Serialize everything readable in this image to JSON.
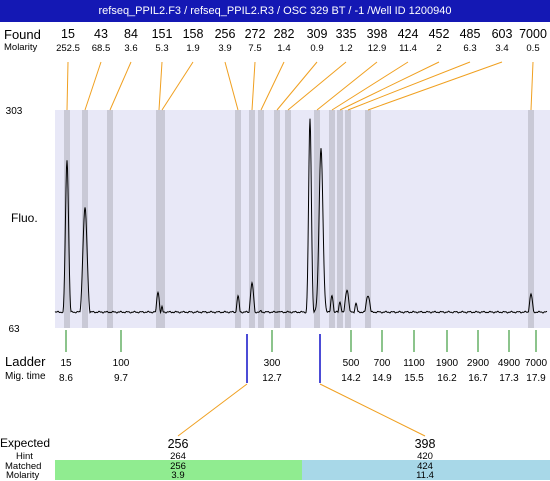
{
  "header": {
    "title": "refseq_PPIL2.F3 / refseq_PPIL2.R3 / OSC 329 BT  / -1 /Well ID 1200940"
  },
  "labels": {
    "found": "Found",
    "molarity": "Molarity",
    "fluo": "Fluo.",
    "ladder": "Ladder",
    "mig_time": "Mig. time",
    "expected": "Expected",
    "hint": "Hint",
    "matched": "Matched",
    "molarity_bottom": "Molarity"
  },
  "colors": {
    "title_bar": "#1418b4",
    "plot_background": "#e8e8f7",
    "band": "#c9c9d6",
    "leader_line": "#f0a020",
    "ladder_tick": "#1a8a1a",
    "marker": "#1010c8",
    "matched_green": "#90ec90",
    "matched_blue": "#a8d8e8",
    "trace": "#000000"
  },
  "chart_data": {
    "type": "line",
    "y_axis": {
      "min": 63,
      "max": 303,
      "label": "Fluo."
    },
    "found_peaks": [
      {
        "size": "15",
        "molarity": "252.5"
      },
      {
        "size": "43",
        "molarity": "68.5"
      },
      {
        "size": "84",
        "molarity": "3.6"
      },
      {
        "size": "151",
        "molarity": "5.3"
      },
      {
        "size": "158",
        "molarity": "1.9"
      },
      {
        "size": "256",
        "molarity": "3.9"
      },
      {
        "size": "272",
        "molarity": "7.5"
      },
      {
        "size": "282",
        "molarity": "1.4"
      },
      {
        "size": "309",
        "molarity": "0.9"
      },
      {
        "size": "335",
        "molarity": "1.2"
      },
      {
        "size": "398",
        "molarity": "12.9"
      },
      {
        "size": "424",
        "molarity": "11.4"
      },
      {
        "size": "452",
        "molarity": "2"
      },
      {
        "size": "485",
        "molarity": "6.3"
      },
      {
        "size": "603",
        "molarity": "3.4"
      },
      {
        "size": "7000",
        "molarity": "0.5"
      }
    ],
    "ladder": [
      {
        "size": "15",
        "mig_time": "8.6"
      },
      {
        "size": "100",
        "mig_time": "9.7"
      },
      {
        "size": "300",
        "mig_time": "12.7"
      },
      {
        "size": "500",
        "mig_time": "14.2"
      },
      {
        "size": "700",
        "mig_time": "14.9"
      },
      {
        "size": "1100",
        "mig_time": "15.5"
      },
      {
        "size": "1900",
        "mig_time": "16.2"
      },
      {
        "size": "2900",
        "mig_time": "16.7"
      },
      {
        "size": "4900",
        "mig_time": "17.3"
      },
      {
        "size": "7000",
        "mig_time": "17.9"
      }
    ],
    "expected": [
      {
        "size": "256",
        "hint": "264",
        "matched": "256",
        "molarity": "3.9"
      },
      {
        "size": "398",
        "hint": "420",
        "matched": "424",
        "molarity": "11.4"
      }
    ]
  }
}
